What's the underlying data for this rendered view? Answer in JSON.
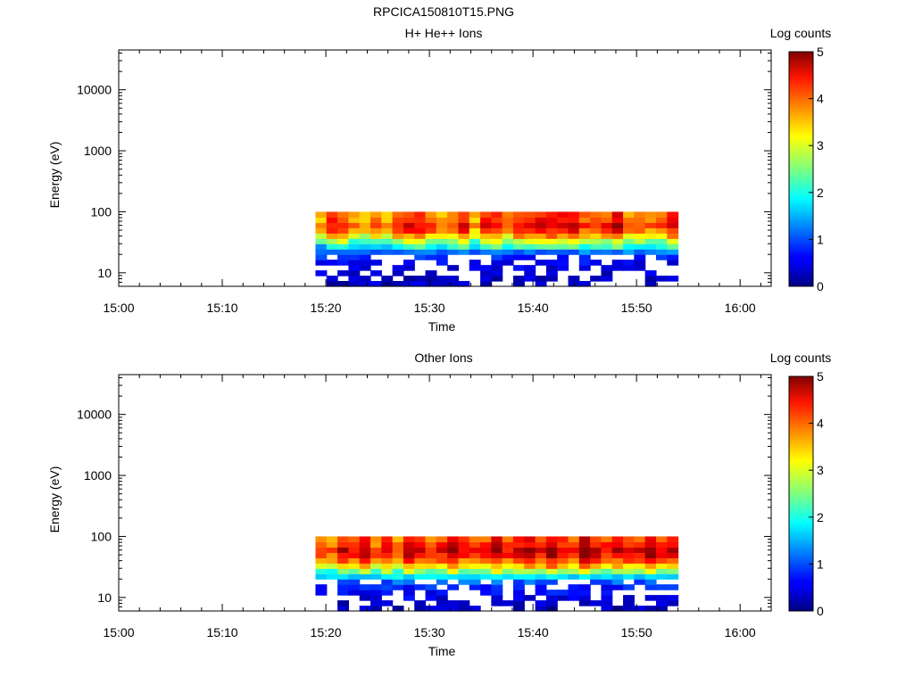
{
  "figure_title": "RPCICA150810T15.PNG",
  "chart_data": [
    {
      "type": "heatmap",
      "title": "H+ He++ Ions",
      "xlabel": "Time",
      "ylabel": "Energy (eV)",
      "x_ticks": [
        "15:00",
        "15:10",
        "15:20",
        "15:30",
        "15:40",
        "15:50",
        "16:00"
      ],
      "xlim": [
        "15:00",
        "16:03"
      ],
      "y_scale": "log",
      "y_ticks": [
        "10",
        "100",
        "1000",
        "10000"
      ],
      "ylim": [
        6,
        45000
      ],
      "colorbar": {
        "label": "Log counts",
        "range": [
          0,
          5
        ],
        "ticks": [
          "0",
          "1",
          "2",
          "3",
          "4",
          "5"
        ]
      },
      "data_time_range": [
        "15:19",
        "15:54"
      ],
      "data_energy_range_eV": [
        6,
        100
      ],
      "intensity_profile": {
        "energy_eV": [
          7,
          9,
          12,
          16,
          20,
          25,
          32,
          40,
          50,
          63,
          80
        ],
        "log_counts": [
          0.3,
          0.4,
          0.5,
          0.6,
          0.9,
          1.6,
          2.4,
          3.2,
          3.8,
          4.1,
          3.7
        ]
      }
    },
    {
      "type": "heatmap",
      "title": "Other Ions",
      "xlabel": "Time",
      "ylabel": "Energy (eV)",
      "x_ticks": [
        "15:00",
        "15:10",
        "15:20",
        "15:30",
        "15:40",
        "15:50",
        "16:00"
      ],
      "xlim": [
        "15:00",
        "16:03"
      ],
      "y_scale": "log",
      "y_ticks": [
        "10",
        "100",
        "1000",
        "10000"
      ],
      "ylim": [
        6,
        45000
      ],
      "colorbar": {
        "label": "Log counts",
        "range": [
          0,
          5
        ],
        "ticks": [
          "0",
          "1",
          "2",
          "3",
          "4",
          "5"
        ]
      },
      "data_time_range": [
        "15:19",
        "15:54"
      ],
      "data_energy_range_eV": [
        6,
        100
      ],
      "intensity_profile": {
        "energy_eV": [
          7,
          9,
          12,
          16,
          20,
          25,
          32,
          40,
          50,
          63,
          80
        ],
        "log_counts": [
          0.3,
          0.4,
          0.6,
          0.8,
          1.3,
          2.3,
          3.1,
          3.8,
          4.3,
          4.5,
          4.0
        ]
      }
    }
  ]
}
